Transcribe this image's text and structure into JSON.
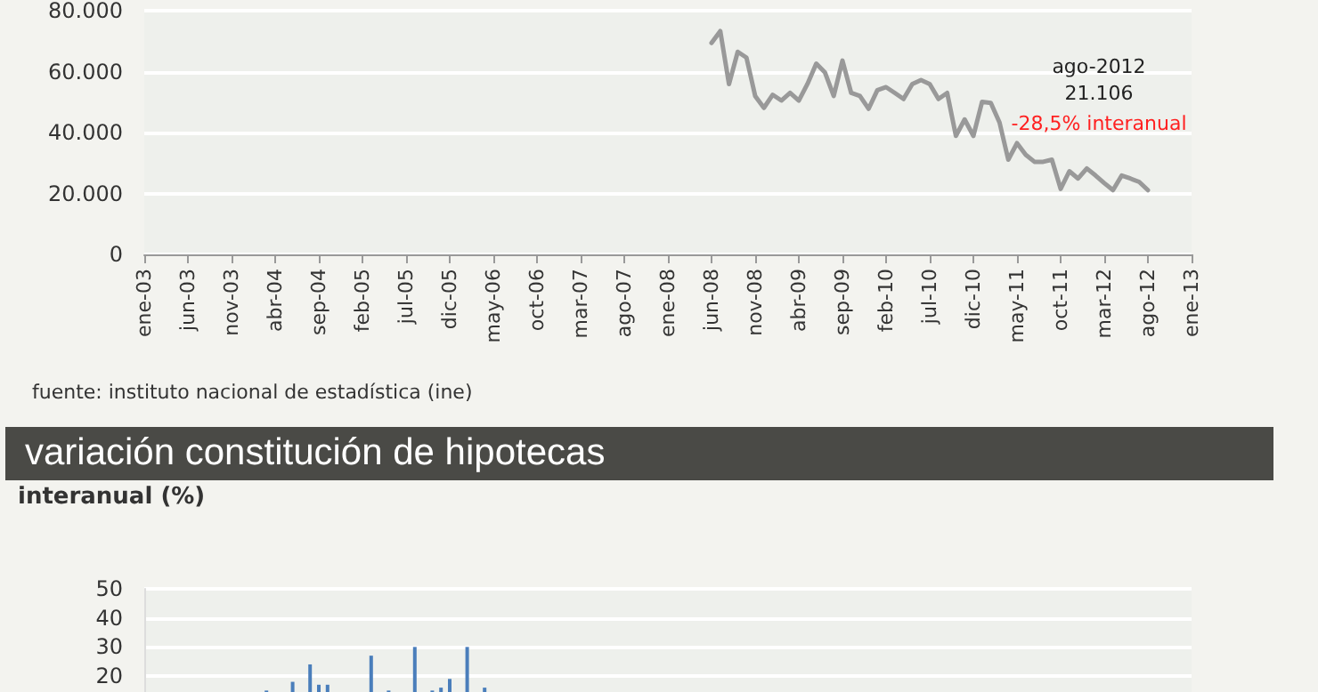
{
  "chart_data": [
    {
      "type": "line",
      "categories": [
        "ene-03",
        null,
        null,
        null,
        null,
        "jun-03",
        null,
        null,
        null,
        null,
        "nov-03",
        null,
        null,
        null,
        null,
        "abr-04",
        null,
        null,
        null,
        null,
        "sep-04",
        null,
        null,
        null,
        null,
        "feb-05",
        null,
        null,
        null,
        null,
        "jul-05",
        null,
        null,
        null,
        null,
        "dic-05",
        null,
        null,
        null,
        null,
        "may-06",
        null,
        null,
        null,
        null,
        "oct-06",
        null,
        null,
        null,
        null,
        "mar-07",
        null,
        null,
        null,
        null,
        "ago-07",
        null,
        null,
        null,
        null,
        "ene-08",
        null,
        null,
        null,
        null,
        "jun-08",
        null,
        null,
        null,
        null,
        "nov-08",
        null,
        null,
        null,
        null,
        "abr-09",
        null,
        null,
        null,
        null,
        "sep-09",
        null,
        null,
        null,
        null,
        "feb-10",
        null,
        null,
        null,
        null,
        "jul-10",
        null,
        null,
        null,
        null,
        "dic-10",
        null,
        null,
        null,
        null,
        "may-11",
        null,
        null,
        null,
        null,
        "oct-11",
        null,
        null,
        null,
        null,
        "mar-12",
        null,
        null,
        null,
        null,
        "ago-12",
        null,
        null,
        null,
        null,
        "ene-13"
      ],
      "series": [
        {
          "color": "#999999",
          "values": [
            null,
            null,
            null,
            null,
            null,
            null,
            null,
            null,
            null,
            null,
            null,
            null,
            null,
            null,
            null,
            null,
            null,
            null,
            null,
            null,
            null,
            null,
            null,
            null,
            null,
            null,
            null,
            null,
            null,
            null,
            null,
            null,
            null,
            null,
            null,
            null,
            null,
            null,
            null,
            null,
            null,
            null,
            null,
            null,
            null,
            null,
            null,
            null,
            null,
            null,
            null,
            null,
            null,
            null,
            null,
            null,
            null,
            null,
            null,
            null,
            null,
            null,
            null,
            null,
            null,
            69400,
            73300,
            55900,
            66500,
            64600,
            52000,
            48100,
            52400,
            50500,
            53000,
            50500,
            56000,
            62600,
            59700,
            52000,
            63600,
            53000,
            52000,
            47800,
            53900,
            54900,
            53000,
            51000,
            55900,
            57200,
            55900,
            51000,
            53000,
            38900,
            44300,
            38900,
            50100,
            49700,
            43300,
            31100,
            36500,
            32700,
            30400,
            30400,
            31100,
            21500,
            27300,
            24900,
            28200,
            25900,
            23400,
            21100,
            25900,
            24900,
            23800,
            21100,
            null,
            null,
            null,
            null,
            null
          ]
        }
      ],
      "ylim": [
        0,
        80000
      ],
      "yticks": [
        0,
        {
          "value": 20000,
          "label": "20.000"
        },
        {
          "value": 40000,
          "label": "40.000"
        },
        {
          "value": 60000,
          "label": "60.000"
        },
        {
          "value": 80000,
          "label": "80.000"
        }
      ],
      "grid": "y",
      "marker": "none",
      "line_style": "solid",
      "annotations": [
        "ago-2012\n21.106",
        "-28,5% interanual",
        "fuente: instituto nacional de estadística (ine)"
      ]
    },
    {
      "type": "bar",
      "title": "variación constitución de hipotecas",
      "ylabel": "interanual (%)",
      "categories": [
        null,
        null,
        null,
        null,
        null,
        null,
        null,
        null,
        null,
        null,
        null,
        null,
        null,
        null,
        null,
        null,
        null,
        null,
        null,
        null,
        null,
        null,
        null,
        null,
        null,
        null,
        null,
        null,
        null,
        null,
        null,
        null,
        null,
        null,
        null,
        null,
        null,
        null,
        null,
        null,
        null,
        null,
        null,
        null,
        null,
        null,
        null,
        null,
        null,
        null,
        null,
        null,
        null,
        null,
        null,
        null,
        null,
        null,
        null,
        null,
        null,
        null,
        null,
        null,
        null,
        null,
        null,
        null,
        null,
        null,
        null,
        null,
        null,
        null,
        null,
        null,
        null,
        null,
        null,
        null,
        null,
        null,
        null,
        null,
        null,
        null,
        null,
        null,
        null,
        null,
        null,
        null,
        null,
        null,
        null,
        null,
        null,
        null,
        null,
        null,
        null,
        null,
        null,
        null,
        null,
        null,
        null,
        null,
        null,
        null,
        null,
        null,
        null,
        null,
        null,
        null,
        null,
        null,
        null,
        null,
        null
      ],
      "series": [
        {
          "color": "#4a7ebb",
          "values": [
            null,
            null,
            null,
            null,
            null,
            null,
            null,
            null,
            null,
            null,
            null,
            null,
            null,
            null,
            15,
            null,
            null,
            18,
            null,
            24,
            17,
            17,
            null,
            null,
            null,
            null,
            27,
            null,
            15,
            null,
            null,
            30,
            null,
            15,
            16,
            19,
            null,
            30,
            null,
            16,
            null,
            null,
            null,
            null,
            null,
            null,
            null,
            null,
            null,
            null,
            null,
            null,
            null,
            null,
            null,
            null,
            null,
            null,
            null,
            null,
            null,
            null,
            null,
            null,
            null,
            null,
            null,
            null,
            null,
            null,
            null,
            null,
            null,
            null,
            null,
            null,
            null,
            null,
            null,
            null,
            null,
            null,
            null,
            null,
            null,
            null,
            null,
            null,
            null,
            null,
            null,
            null,
            null,
            null,
            null,
            null,
            null,
            null,
            null,
            null,
            null,
            null,
            null,
            null,
            null,
            null,
            null,
            null,
            null,
            null,
            null,
            null,
            null,
            null,
            null,
            null,
            null,
            null,
            null,
            null,
            null
          ]
        }
      ],
      "ylim": [
        14.5,
        50
      ],
      "yticks": [
        20,
        30,
        40,
        50
      ],
      "grid": "y",
      "tick_labels": "y"
    }
  ]
}
